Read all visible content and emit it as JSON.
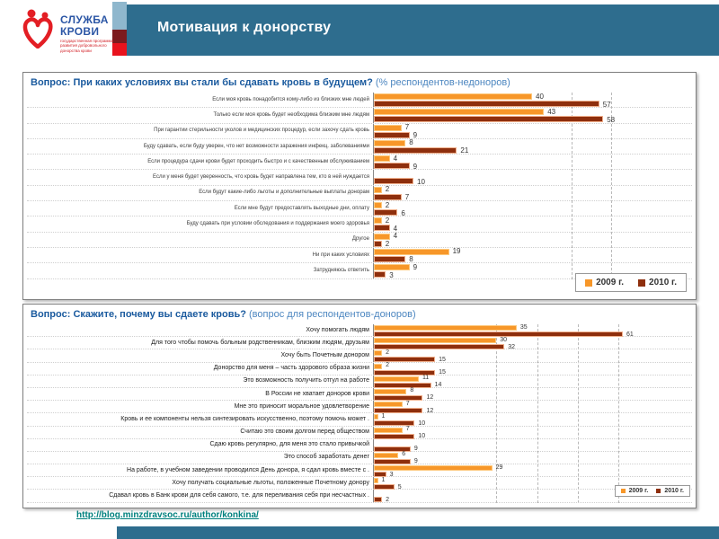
{
  "header": {
    "title": "Мотивация к донорству",
    "logo": {
      "heart_icon": "blood-service-heart-icon",
      "line1": "СЛУЖБА",
      "line2": "КРОВИ",
      "tagline": "государственная программа развития добровольного донорства крови"
    },
    "accent_colors": {
      "light_blue": "#8FB7CD",
      "maroon": "#7C1B1E",
      "red": "#E8131D",
      "teal": "#2E6D8E"
    }
  },
  "chart_data": [
    {
      "type": "bar",
      "orientation": "horizontal",
      "title": "Вопрос: При каких условиях вы стали бы сдавать кровь в будущем?",
      "subtitle": "(% респондентов-недоноров)",
      "xlim": [
        0,
        70
      ],
      "grid": true,
      "legend_position": "bottom-right",
      "categories": [
        "Если моя кровь понадобится кому-либо из близких мне людей",
        "Только если моя кровь будет необходима близким мне людям",
        "При гарантии стерильности уколов и медицинских процедур, если захочу сдать кровь",
        "Буду сдавать, если буду уверен, что нет возможности заражения инфекц. заболеваниями",
        "Если процедура сдачи крови будет проходить быстро и с качественным обслуживанием",
        "Если у меня будет уверенность, что кровь будет направлена тем, кто в ней нуждается",
        "Если будут какие-либо льготы и дополнительные выплаты донорам",
        "Если мне будут предоставлять выходные дни, оплату",
        "Буду сдавать при условии обследования и поддержания моего здоровья",
        "Другое",
        "Ни при каких условиях",
        "Затрудняюсь ответить"
      ],
      "series": [
        {
          "name": "2009 г.",
          "color": "#F79729",
          "values": [
            40,
            43,
            7,
            8,
            4,
            null,
            2,
            2,
            2,
            4,
            19,
            9
          ]
        },
        {
          "name": "2010 г.",
          "color": "#8E2F0D",
          "values": [
            57,
            58,
            9,
            21,
            9,
            10,
            7,
            6,
            4,
            2,
            8,
            3
          ]
        }
      ]
    },
    {
      "type": "bar",
      "orientation": "horizontal",
      "title": "Вопрос: Скажите, почему вы сдаете кровь?",
      "subtitle": "(вопрос для респондентов-доноров)",
      "xlim": [
        0,
        75
      ],
      "grid": true,
      "legend_position": "bottom-right",
      "categories": [
        "Хочу помогать людям",
        "Для того чтобы помочь больным родственникам, близким людям, друзьям",
        "Хочу быть Почетным донором",
        "Донорство для меня – часть здорового образа жизни",
        "Это возможность получить отгул на работе",
        "В России не хватает доноров крови",
        "Мне это приносит моральное удовлетворение",
        "Кровь и ее компоненты нельзя синтезировать искусственно, поэтому помочь может .",
        "Считаю это своим долгом перед обществом",
        "Сдаю кровь регулярно, для меня это стало привычкой",
        "Это способ заработать денег",
        "На работе, в учебном заведении  проводился День донора,  я сдал кровь вместе с .",
        "Хочу получать социальные льготы, положенные Почетному донору",
        "Сдавал кровь в Банк крови для себя самого, т.е. для переливания себя при несчастных ."
      ],
      "series": [
        {
          "name": "2009 г.",
          "color": "#F79729",
          "values": [
            35,
            30,
            2,
            2,
            11,
            8,
            7,
            1,
            7,
            null,
            6,
            29,
            1,
            null
          ]
        },
        {
          "name": "2010 г.",
          "color": "#8E2F0D",
          "values": [
            61,
            32,
            15,
            15,
            14,
            12,
            12,
            10,
            10,
            9,
            9,
            3,
            5,
            2
          ]
        }
      ]
    }
  ],
  "footer": {
    "link_text": "http://blog.minzdravsoc.ru/author/konkina/"
  }
}
